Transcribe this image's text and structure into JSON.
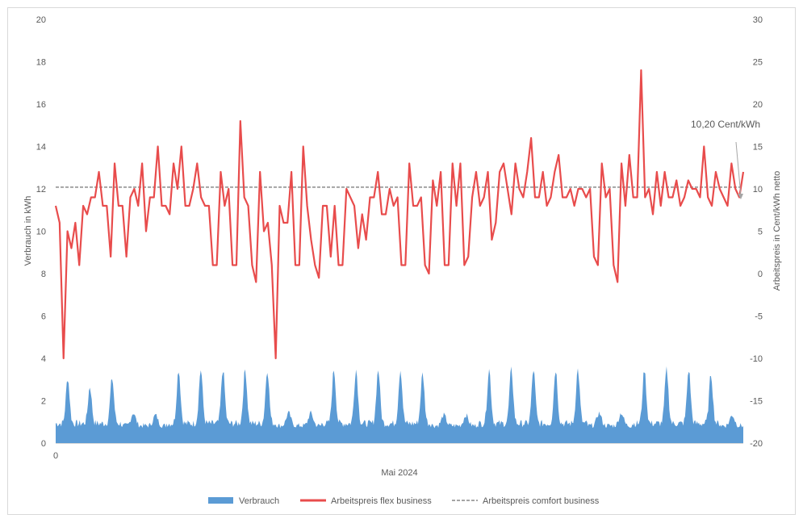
{
  "chart_data": {
    "type": "bar+line",
    "xlabel": "Mai 2024",
    "x_tick_first": "0",
    "ylabel_left": "Verbrauch in kWh",
    "ylabel_right": "Arbeitspreis in Cent/kWh netto",
    "ylim_left": [
      0,
      20
    ],
    "yticks_left": [
      "0",
      "2",
      "4",
      "6",
      "8",
      "10",
      "12",
      "14",
      "16",
      "18",
      "20"
    ],
    "ylim_right": [
      -20,
      30
    ],
    "yticks_right": [
      "-20",
      "-15",
      "-10",
      "-5",
      "0",
      "5",
      "10",
      "15",
      "20",
      "25",
      "30"
    ],
    "grid": "none",
    "legend_position": "bottom",
    "annotation": {
      "text": "10,20 Cent/kWh",
      "value": 10.2
    },
    "series": [
      {
        "name": "Verbrauch",
        "kind": "area",
        "axis": "left",
        "color": "#5b9bd5",
        "daily_peaks_kwh": [
          2.9,
          2.5,
          2.9,
          1.3,
          1.2,
          3.3,
          3.3,
          3.3,
          3.3,
          3.3,
          1.3,
          1.3,
          3.3,
          3.3,
          3.3,
          3.3,
          3.1,
          1.2,
          1.2,
          3.3,
          3.3,
          3.3,
          3.3,
          3.3,
          1.3,
          1.3,
          3.3,
          3.3,
          3.3,
          3.1,
          1.2
        ]
      },
      {
        "name": "Arbeitspreis flex business",
        "kind": "line",
        "axis": "right",
        "color": "#e84c4c",
        "values_ct_kwh": [
          8,
          6,
          -10,
          5,
          3,
          6,
          1,
          8,
          7,
          9,
          9,
          12,
          8,
          8,
          2,
          13,
          8,
          8,
          2,
          9,
          10,
          8,
          13,
          5,
          9,
          9,
          15,
          8,
          8,
          7,
          13,
          10,
          15,
          8,
          8,
          10,
          13,
          9,
          8,
          8,
          1,
          1,
          12,
          8,
          10,
          1,
          1,
          18,
          9,
          8,
          1,
          -1,
          12,
          5,
          6,
          1,
          -10,
          8,
          6,
          6,
          12,
          1,
          1,
          15,
          8,
          4,
          1,
          -0.5,
          8,
          8,
          2,
          8,
          1,
          1,
          10,
          9,
          8,
          3,
          7,
          4,
          9,
          9,
          12,
          7,
          7,
          10,
          8,
          9,
          1,
          1,
          13,
          8,
          8,
          9,
          1,
          0,
          11,
          8,
          12,
          1,
          1,
          13,
          8,
          13,
          1,
          2,
          9,
          12,
          8,
          9,
          12,
          4,
          6,
          12,
          13,
          10,
          7,
          13,
          10,
          9,
          12,
          16,
          9,
          9,
          12,
          8,
          9,
          12,
          14,
          9,
          9,
          10,
          8,
          10,
          10,
          9,
          10,
          2,
          1,
          13,
          9,
          10,
          1,
          -1,
          13,
          8,
          14,
          9,
          9,
          24,
          9,
          10,
          7,
          12,
          8,
          12,
          9,
          9,
          11,
          8,
          9,
          11,
          10,
          10,
          9,
          15,
          9,
          8,
          12,
          10,
          9,
          8,
          13,
          10,
          9,
          12
        ]
      },
      {
        "name": "Arbeitspreis comfort business",
        "kind": "line",
        "axis": "right",
        "color": "#a5a5a5",
        "dash": "dashed",
        "value_ct_kwh": 10.2
      }
    ]
  }
}
